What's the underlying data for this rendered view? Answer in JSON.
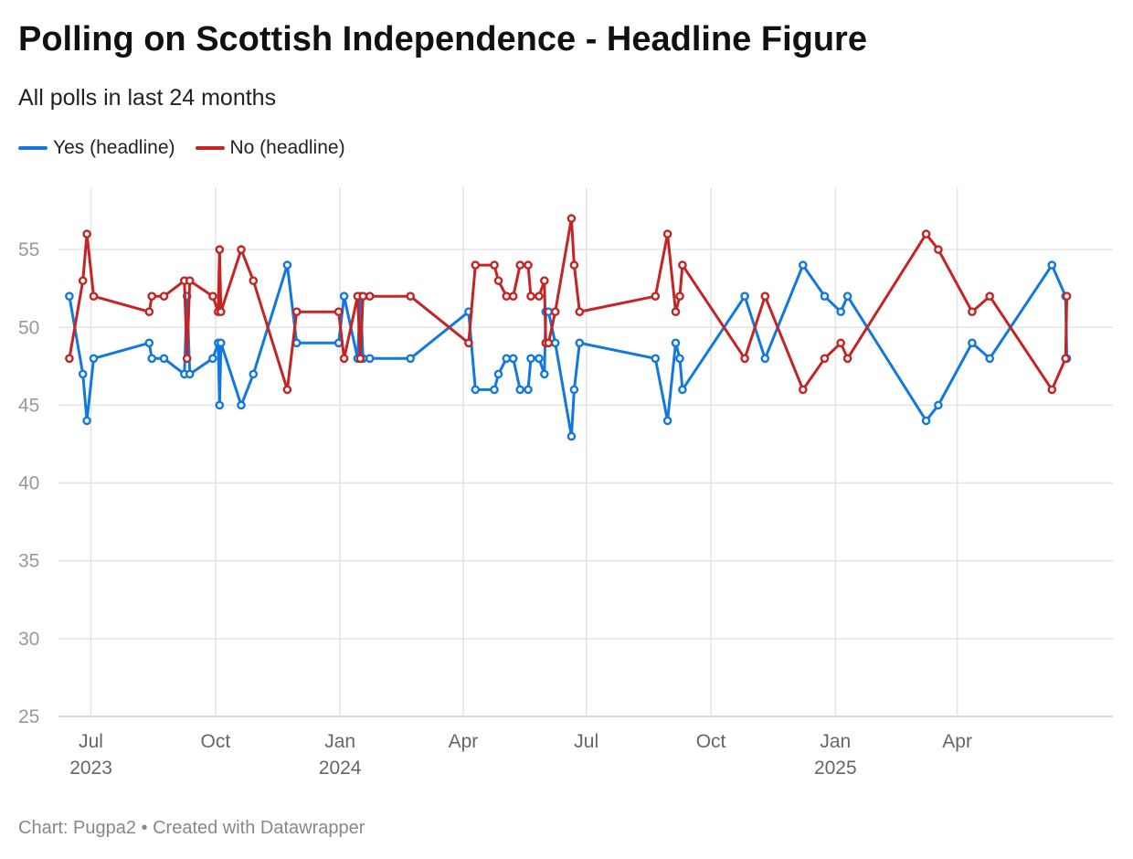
{
  "title": "Polling on Scottish Independence - Headline Figure",
  "subtitle": "All polls in last 24 months",
  "footer": "Chart: Pugpa2 • Created with Datawrapper",
  "legend": [
    {
      "label": "Yes (headline)",
      "color": "#1277df"
    },
    {
      "label": "No (headline)",
      "color": "#c42424"
    }
  ],
  "chart_data": {
    "type": "line",
    "yticks": [
      25,
      30,
      35,
      40,
      45,
      50,
      55
    ],
    "ylim": [
      25,
      59
    ],
    "xlim": [
      "2023-06-07",
      "2025-07-25"
    ],
    "xticks": [
      {
        "date": "2023-07-01",
        "label": "Jul",
        "year": "2023"
      },
      {
        "date": "2023-10-01",
        "label": "Oct",
        "year": ""
      },
      {
        "date": "2024-01-01",
        "label": "Jan",
        "year": "2024"
      },
      {
        "date": "2024-04-01",
        "label": "Apr",
        "year": ""
      },
      {
        "date": "2024-07-01",
        "label": "Jul",
        "year": ""
      },
      {
        "date": "2024-10-01",
        "label": "Oct",
        "year": ""
      },
      {
        "date": "2025-01-01",
        "label": "Jan",
        "year": "2025"
      },
      {
        "date": "2025-04-01",
        "label": "Apr",
        "year": ""
      }
    ],
    "grid": true,
    "legend_position": "top-left",
    "series": [
      {
        "name": "Yes (headline)",
        "color": "#1277df",
        "points": [
          [
            "2023-06-15",
            52
          ],
          [
            "2023-06-25",
            47
          ],
          [
            "2023-06-28",
            44
          ],
          [
            "2023-07-03",
            48
          ],
          [
            "2023-08-13",
            49
          ],
          [
            "2023-08-15",
            48
          ],
          [
            "2023-08-24",
            48
          ],
          [
            "2023-09-08",
            47
          ],
          [
            "2023-09-10",
            52
          ],
          [
            "2023-09-12",
            47
          ],
          [
            "2023-09-29",
            48
          ],
          [
            "2023-10-03",
            49
          ],
          [
            "2023-10-04",
            45
          ],
          [
            "2023-10-05",
            49
          ],
          [
            "2023-10-20",
            45
          ],
          [
            "2023-10-29",
            47
          ],
          [
            "2023-11-23",
            54
          ],
          [
            "2023-11-30",
            49
          ],
          [
            "2023-12-31",
            49
          ],
          [
            "2024-01-04",
            52
          ],
          [
            "2024-01-14",
            48
          ],
          [
            "2024-01-16",
            52
          ],
          [
            "2024-01-18",
            48
          ],
          [
            "2024-01-23",
            48
          ],
          [
            "2024-02-22",
            48
          ],
          [
            "2024-04-05",
            51
          ],
          [
            "2024-04-10",
            46
          ],
          [
            "2024-04-24",
            46
          ],
          [
            "2024-04-27",
            47
          ],
          [
            "2024-05-03",
            48
          ],
          [
            "2024-05-08",
            48
          ],
          [
            "2024-05-13",
            46
          ],
          [
            "2024-05-19",
            46
          ],
          [
            "2024-05-21",
            48
          ],
          [
            "2024-05-27",
            48
          ],
          [
            "2024-05-31",
            47
          ],
          [
            "2024-06-01",
            51
          ],
          [
            "2024-06-03",
            51
          ],
          [
            "2024-06-08",
            49
          ],
          [
            "2024-06-20",
            43
          ],
          [
            "2024-06-22",
            46
          ],
          [
            "2024-06-26",
            49
          ],
          [
            "2024-08-21",
            48
          ],
          [
            "2024-08-30",
            44
          ],
          [
            "2024-09-05",
            49
          ],
          [
            "2024-09-08",
            48
          ],
          [
            "2024-09-10",
            46
          ],
          [
            "2024-10-26",
            52
          ],
          [
            "2024-11-10",
            48
          ],
          [
            "2024-12-08",
            54
          ],
          [
            "2024-12-24",
            52
          ],
          [
            "2025-01-05",
            51
          ],
          [
            "2025-01-10",
            52
          ],
          [
            "2025-03-09",
            44
          ],
          [
            "2025-03-18",
            45
          ],
          [
            "2025-04-12",
            49
          ],
          [
            "2025-04-25",
            48
          ],
          [
            "2025-06-10",
            54
          ],
          [
            "2025-06-20",
            52
          ],
          [
            "2025-06-21",
            48
          ]
        ]
      },
      {
        "name": "No (headline)",
        "color": "#c42424",
        "points": [
          [
            "2023-06-15",
            48
          ],
          [
            "2023-06-25",
            53
          ],
          [
            "2023-06-28",
            56
          ],
          [
            "2023-07-03",
            52
          ],
          [
            "2023-08-13",
            51
          ],
          [
            "2023-08-15",
            52
          ],
          [
            "2023-08-24",
            52
          ],
          [
            "2023-09-08",
            53
          ],
          [
            "2023-09-10",
            48
          ],
          [
            "2023-09-12",
            53
          ],
          [
            "2023-09-29",
            52
          ],
          [
            "2023-10-03",
            51
          ],
          [
            "2023-10-04",
            55
          ],
          [
            "2023-10-05",
            51
          ],
          [
            "2023-10-20",
            55
          ],
          [
            "2023-10-29",
            53
          ],
          [
            "2023-11-23",
            46
          ],
          [
            "2023-11-30",
            51
          ],
          [
            "2023-12-31",
            51
          ],
          [
            "2024-01-04",
            48
          ],
          [
            "2024-01-14",
            52
          ],
          [
            "2024-01-16",
            48
          ],
          [
            "2024-01-18",
            52
          ],
          [
            "2024-01-23",
            52
          ],
          [
            "2024-02-22",
            52
          ],
          [
            "2024-04-05",
            49
          ],
          [
            "2024-04-10",
            54
          ],
          [
            "2024-04-24",
            54
          ],
          [
            "2024-04-27",
            53
          ],
          [
            "2024-05-03",
            52
          ],
          [
            "2024-05-08",
            52
          ],
          [
            "2024-05-13",
            54
          ],
          [
            "2024-05-19",
            54
          ],
          [
            "2024-05-21",
            52
          ],
          [
            "2024-05-27",
            52
          ],
          [
            "2024-05-31",
            53
          ],
          [
            "2024-06-01",
            49
          ],
          [
            "2024-06-03",
            49
          ],
          [
            "2024-06-08",
            51
          ],
          [
            "2024-06-20",
            57
          ],
          [
            "2024-06-22",
            54
          ],
          [
            "2024-06-26",
            51
          ],
          [
            "2024-08-21",
            52
          ],
          [
            "2024-08-30",
            56
          ],
          [
            "2024-09-05",
            51
          ],
          [
            "2024-09-08",
            52
          ],
          [
            "2024-09-10",
            54
          ],
          [
            "2024-10-26",
            48
          ],
          [
            "2024-11-10",
            52
          ],
          [
            "2024-12-08",
            46
          ],
          [
            "2024-12-24",
            48
          ],
          [
            "2025-01-05",
            49
          ],
          [
            "2025-01-10",
            48
          ],
          [
            "2025-03-09",
            56
          ],
          [
            "2025-03-18",
            55
          ],
          [
            "2025-04-12",
            51
          ],
          [
            "2025-04-25",
            52
          ],
          [
            "2025-06-10",
            46
          ],
          [
            "2025-06-20",
            48
          ],
          [
            "2025-06-21",
            52
          ]
        ]
      }
    ]
  }
}
